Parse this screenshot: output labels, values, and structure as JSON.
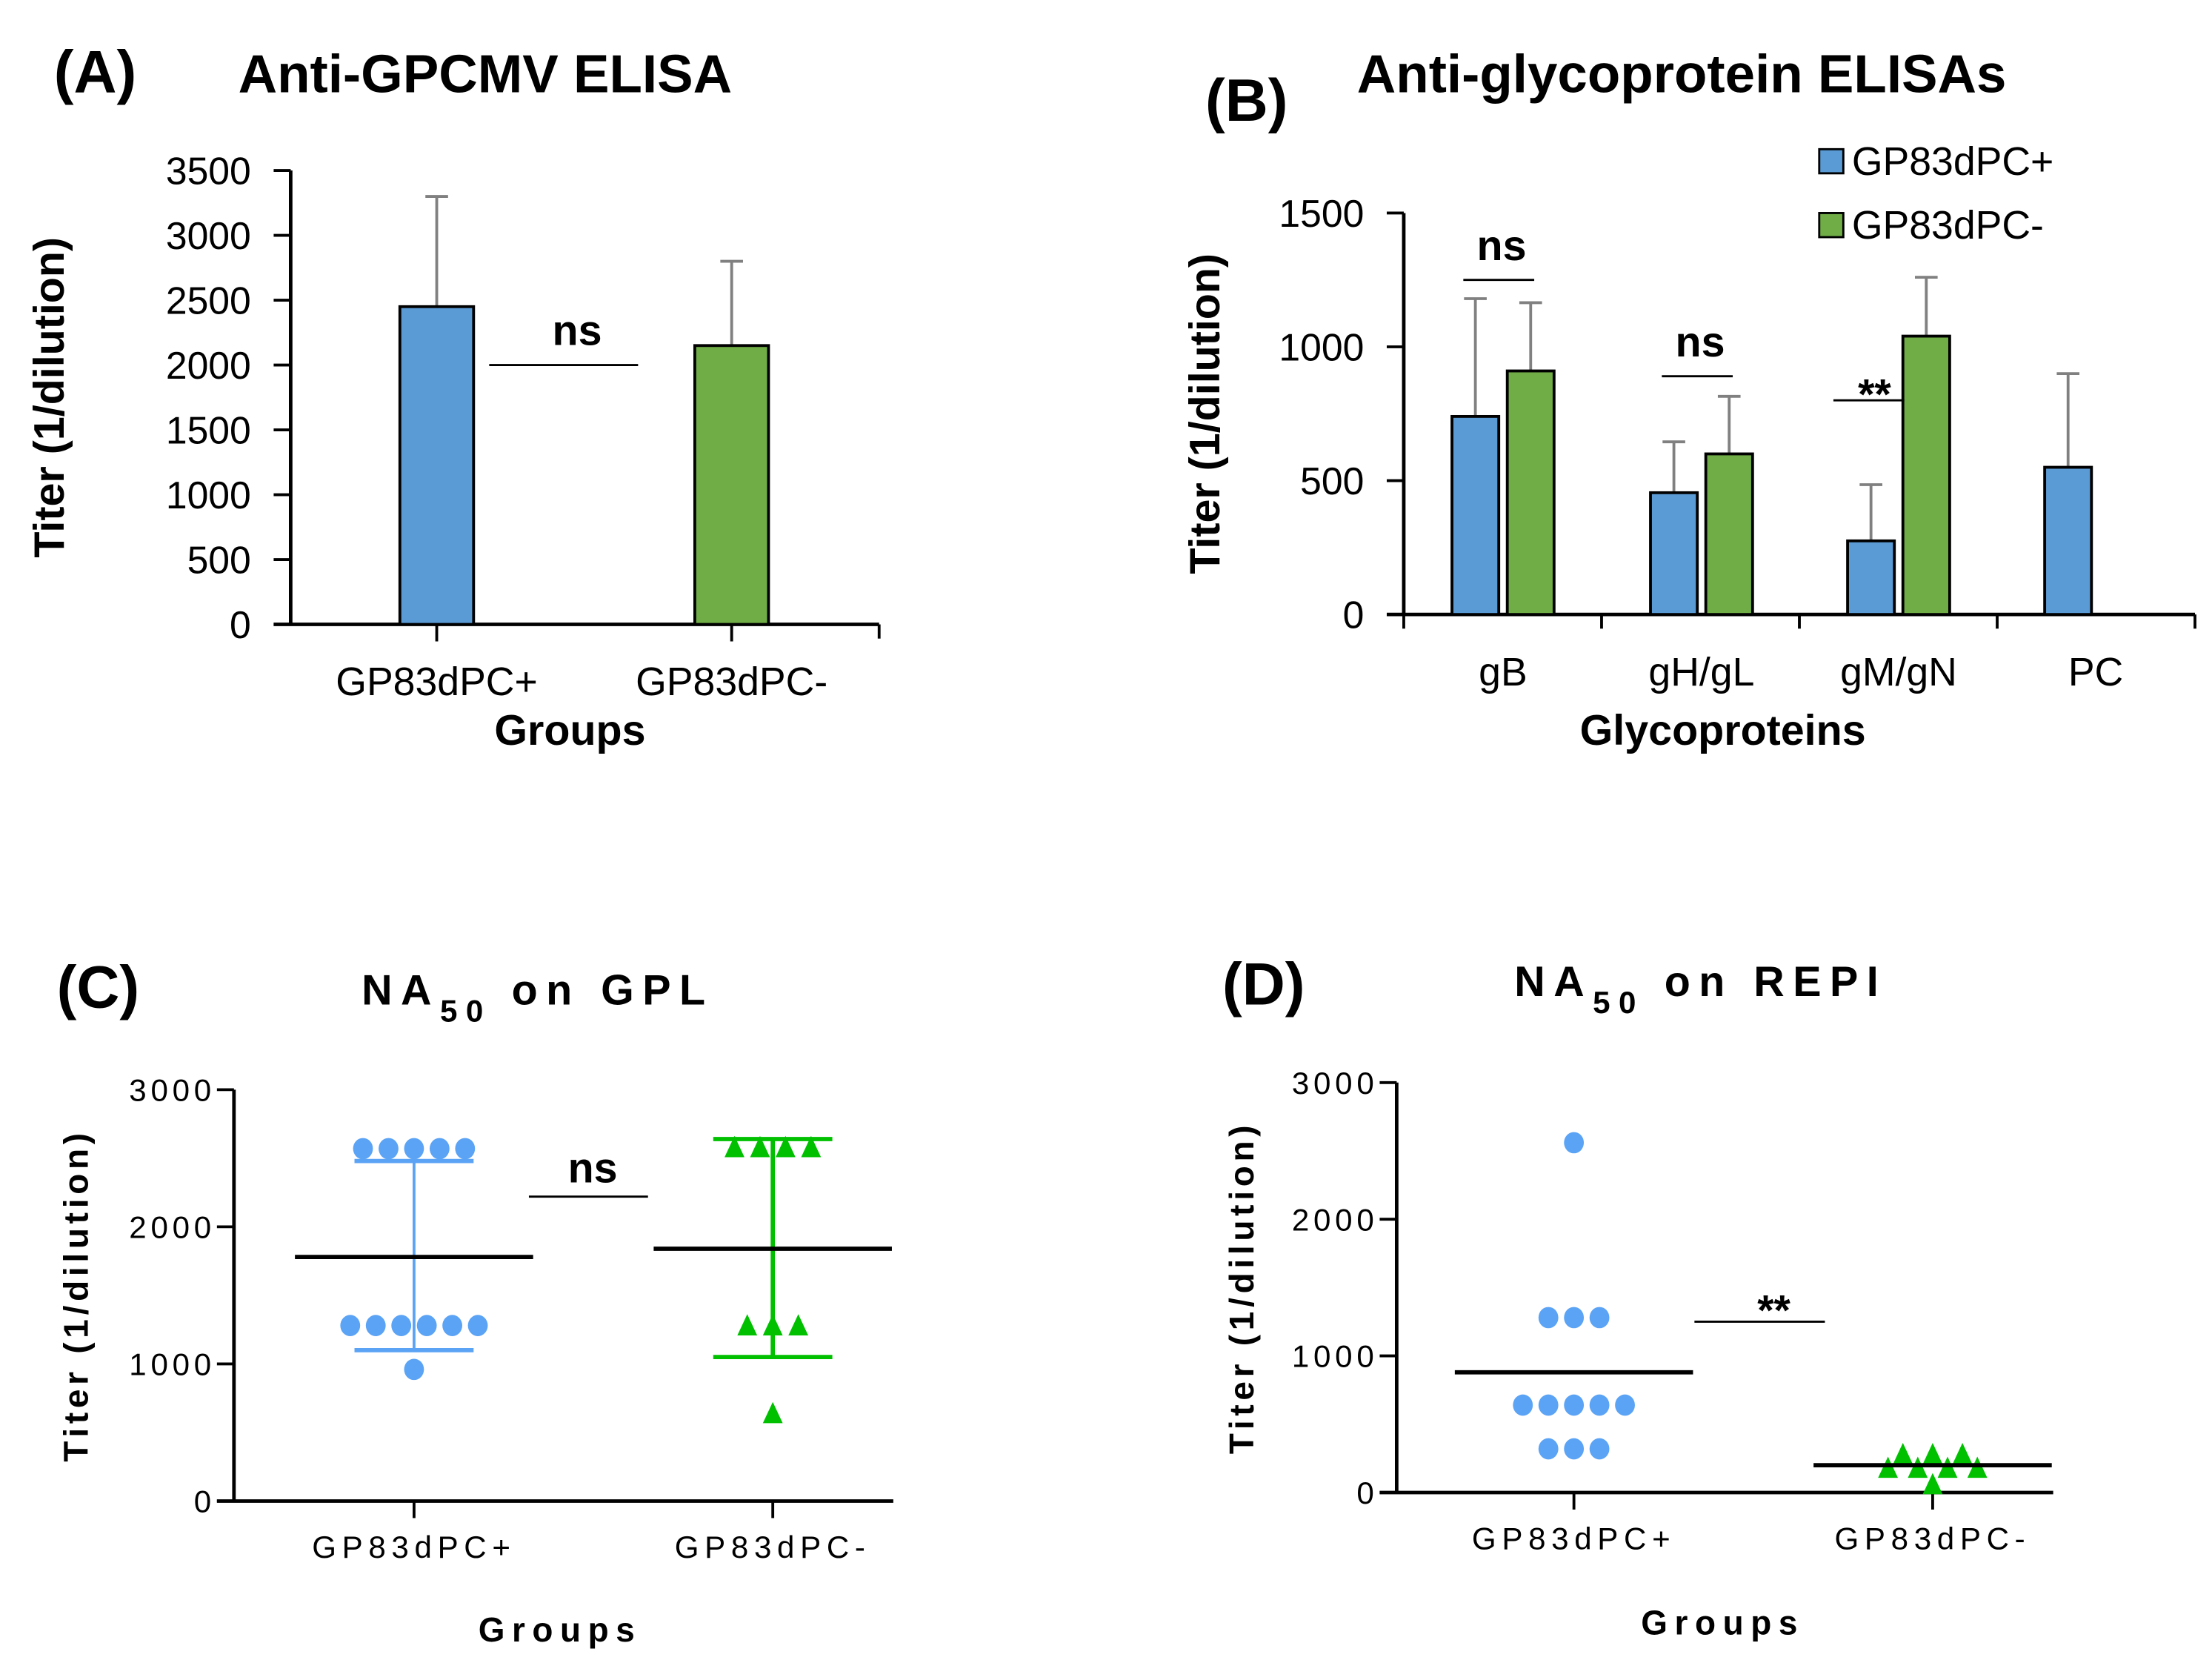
{
  "colors": {
    "blue": "#5b9bd5",
    "green": "#70ad47",
    "scatter_blue": "#5ba3f5",
    "scatter_green": "#00c000",
    "error": "#808080"
  },
  "chart_data": [
    {
      "panel": "(A)",
      "type": "bar",
      "title": "Anti-GPCMV ELISA",
      "xlabel": "Groups",
      "ylabel": "Titer (1/dilution)",
      "ylim": [
        0,
        3500
      ],
      "yticks": [
        "0",
        "500",
        "1000",
        "1500",
        "2000",
        "2500",
        "3000",
        "3500"
      ],
      "categories": [
        "GP83dPC+",
        "GP83dPC-"
      ],
      "values": [
        2450,
        2150
      ],
      "error_upper": [
        3300,
        2800
      ],
      "significance": [
        {
          "label": "ns",
          "y": 2000
        }
      ]
    },
    {
      "panel": "(B)",
      "type": "bar",
      "title": "Anti-glycoprotein ELISAs",
      "xlabel": "Glycoproteins",
      "ylabel": "Titer (1/dilution)",
      "ylim": [
        0,
        1500
      ],
      "yticks": [
        "0",
        "500",
        "1000",
        "1500"
      ],
      "categories": [
        "gB",
        "gH/gL",
        "gM/gN",
        "PC"
      ],
      "legend": "top-right",
      "series": [
        {
          "name": "GP83dPC+",
          "values": [
            740,
            455,
            275,
            550
          ],
          "error_upper": [
            1180,
            645,
            485,
            900
          ]
        },
        {
          "name": "GP83dPC-",
          "values": [
            910,
            600,
            1040,
            null
          ],
          "error_upper": [
            1165,
            815,
            1260,
            null
          ]
        }
      ],
      "significance": [
        {
          "label": "ns",
          "group": 0,
          "y": 1250
        },
        {
          "label": "ns",
          "group": 1,
          "y": 890
        },
        {
          "label": "**",
          "group": 2,
          "y": 800
        }
      ]
    },
    {
      "panel": "(C)",
      "type": "scatter",
      "title_main": "NA",
      "title_sub": "50",
      "title_rest": "on GPL",
      "xlabel": "Groups",
      "ylabel": "Titer (1/dilution)",
      "ylim": [
        0,
        3000
      ],
      "yticks": [
        "0",
        "1000",
        "2000",
        "3000"
      ],
      "categories": [
        "GP83dPC+",
        "GP83dPC-"
      ],
      "groups": [
        {
          "values": [
            2570,
            2570,
            2570,
            2570,
            2570,
            1280,
            1280,
            1280,
            1280,
            1280,
            1280,
            960
          ],
          "mean": 1780,
          "error": [
            1100,
            2480
          ]
        },
        {
          "values": [
            2580,
            2580,
            2580,
            2580,
            1280,
            1280,
            1280,
            640
          ],
          "mean": 1840,
          "error": [
            1050,
            2640
          ]
        }
      ],
      "significance": [
        {
          "label": "ns",
          "y": 2220
        }
      ]
    },
    {
      "panel": "(D)",
      "type": "scatter",
      "title_main": "NA",
      "title_sub": "50",
      "title_rest": "on REPI",
      "xlabel": "Groups",
      "ylabel": "Titer (1/dilution)",
      "ylim": [
        0,
        3000
      ],
      "yticks": [
        "0",
        "1000",
        "2000",
        "3000"
      ],
      "categories": [
        "GP83dPC+",
        "GP83dPC-"
      ],
      "groups": [
        {
          "values": [
            2560,
            1280,
            1280,
            1280,
            640,
            640,
            640,
            640,
            640,
            320,
            320,
            320
          ],
          "mean": 880
        },
        {
          "values": [
            280,
            280,
            280,
            180,
            180,
            180,
            180,
            60
          ],
          "mean": 200
        }
      ],
      "significance": [
        {
          "label": "**",
          "y": 1250
        }
      ]
    }
  ]
}
